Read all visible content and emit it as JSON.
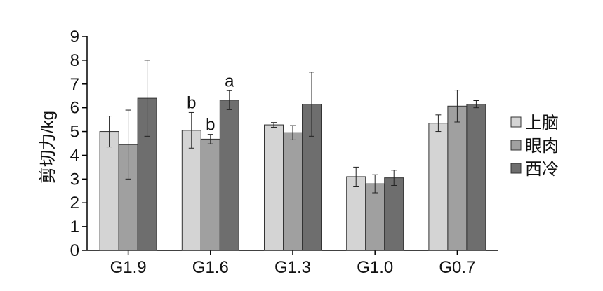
{
  "chart_data": {
    "type": "bar",
    "categories": [
      "G1.9",
      "G1.6",
      "G1.3",
      "G1.0",
      "G0.7"
    ],
    "series": [
      {
        "name": "上脑",
        "color": "#d4d4d4",
        "values": [
          5.0,
          5.05,
          5.28,
          3.1,
          5.35
        ],
        "errors": [
          0.65,
          0.75,
          0.1,
          0.4,
          0.35
        ]
      },
      {
        "name": "眼肉",
        "color": "#a0a0a0",
        "values": [
          4.45,
          4.68,
          4.95,
          2.8,
          6.07
        ],
        "errors": [
          1.45,
          0.2,
          0.3,
          0.38,
          0.67
        ]
      },
      {
        "name": "西冷",
        "color": "#6e6e6e",
        "values": [
          6.4,
          6.32,
          6.15,
          3.05,
          6.15
        ],
        "errors": [
          1.6,
          0.4,
          1.35,
          0.32,
          0.15
        ]
      }
    ],
    "annotations": [
      {
        "category": "G1.6",
        "series": "上脑",
        "text": "b"
      },
      {
        "category": "G1.6",
        "series": "眼肉",
        "text": "b"
      },
      {
        "category": "G1.6",
        "series": "西冷",
        "text": "a"
      }
    ],
    "ylabel": "剪切力/kg",
    "xlabel": "",
    "ylim": [
      0,
      9
    ],
    "yticks": [
      0,
      1,
      2,
      3,
      4,
      5,
      6,
      7,
      8,
      9
    ],
    "grid": false,
    "legend_position": "right"
  }
}
